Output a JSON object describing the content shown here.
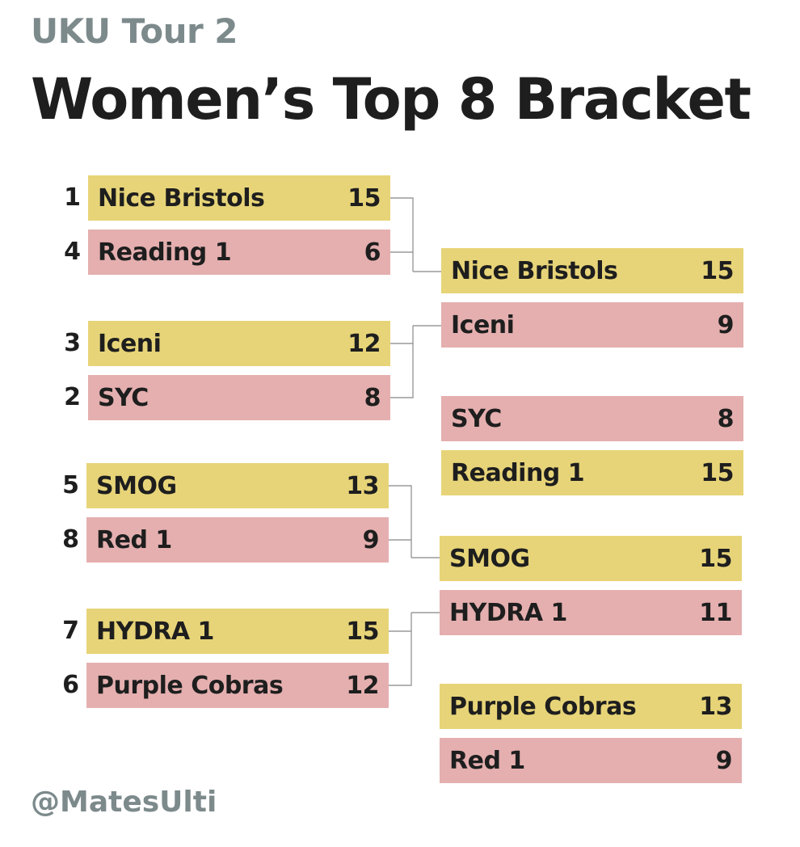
{
  "header": {
    "subtitle": "UKU Tour 2",
    "title": "Women’s Top 8 Bracket"
  },
  "footer": {
    "handle": "@MatesUlti"
  },
  "colors": {
    "winner": "#e7d478",
    "loser": "#e5afaf",
    "title": "#1e1e1e",
    "muted": "#7d8a8c"
  },
  "quarterfinals": [
    {
      "team": "Nice Bristols",
      "seed": "1",
      "score": "15",
      "result": "win"
    },
    {
      "team": "Reading 1",
      "seed": "4",
      "score": "6",
      "result": "loss"
    },
    {
      "team": "Iceni",
      "seed": "3",
      "score": "12",
      "result": "win"
    },
    {
      "team": "SYC",
      "seed": "2",
      "score": "8",
      "result": "loss"
    },
    {
      "team": "SMOG",
      "seed": "5",
      "score": "13",
      "result": "win"
    },
    {
      "team": "Red 1",
      "seed": "8",
      "score": "9",
      "result": "loss"
    },
    {
      "team": "HYDRA 1",
      "seed": "7",
      "score": "15",
      "result": "win"
    },
    {
      "team": "Purple Cobras",
      "seed": "6",
      "score": "12",
      "result": "loss"
    }
  ],
  "second_round": [
    {
      "team": "Nice Bristols",
      "score": "15",
      "result": "win"
    },
    {
      "team": "Iceni",
      "score": "9",
      "result": "loss"
    },
    {
      "team": "SYC",
      "score": "8",
      "result": "loss"
    },
    {
      "team": "Reading 1",
      "score": "15",
      "result": "win"
    },
    {
      "team": "SMOG",
      "score": "15",
      "result": "win"
    },
    {
      "team": "HYDRA 1",
      "score": "11",
      "result": "loss"
    },
    {
      "team": "Purple Cobras",
      "score": "13",
      "result": "win"
    },
    {
      "team": "Red 1",
      "score": "9",
      "result": "loss"
    }
  ]
}
